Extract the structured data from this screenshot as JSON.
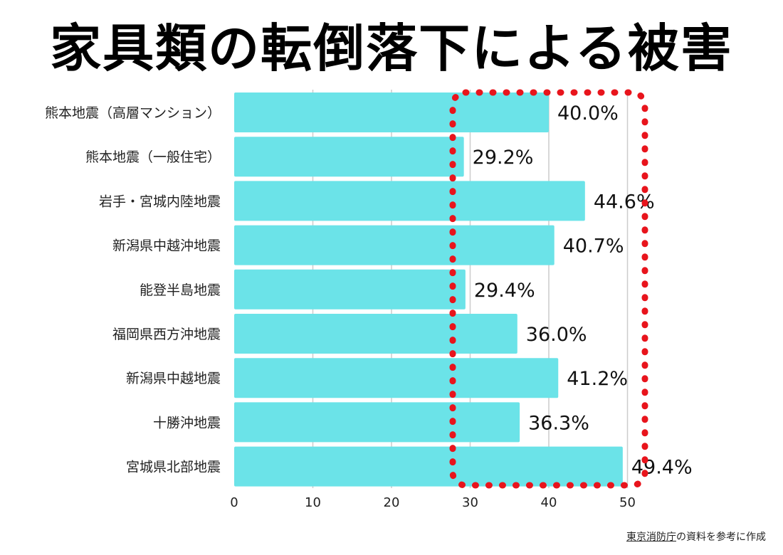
{
  "chart_data": {
    "type": "bar",
    "orientation": "horizontal",
    "title": "家具類の転倒落下による被害",
    "categories": [
      "熊本地震（高層マンション）",
      "熊本地震（一般住宅）",
      "岩手・宮城内陸地震",
      "新潟県中越沖地震",
      "能登半島地震",
      "福岡県西方沖地震",
      "新潟県中越地震",
      "十勝沖地震",
      "宮城県北部地震"
    ],
    "values": [
      40.0,
      29.2,
      44.6,
      40.7,
      29.4,
      36.0,
      41.2,
      36.3,
      49.4
    ],
    "value_labels": [
      "40.0%",
      "29.2%",
      "44.6%",
      "40.7%",
      "29.4%",
      "36.0%",
      "41.2%",
      "36.3%",
      "49.4%"
    ],
    "x_ticks": [
      "0",
      "10",
      "20",
      "30",
      "40",
      "50"
    ],
    "xlim": [
      0,
      50
    ],
    "xlabel": "",
    "ylabel": "",
    "grid": "vertical",
    "highlight": "red dotted box around 28–52 range",
    "colors": {
      "bar": "#6be3e8",
      "highlight": "#e8141c",
      "grid": "#cccccc"
    }
  },
  "source": {
    "org": "東京消防庁",
    "text": "の資料を参考に作成"
  }
}
